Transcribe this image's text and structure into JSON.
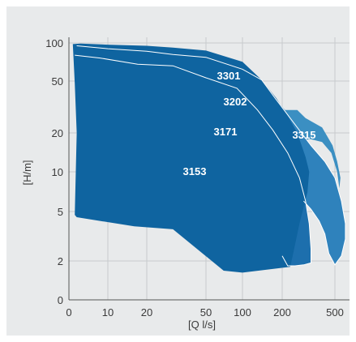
{
  "chart_data": {
    "type": "area",
    "xlabel": "[Q l/s]",
    "ylabel": "[H/m]",
    "x_scale": "log",
    "y_scale": "log",
    "x_ticks": [
      0,
      10,
      20,
      50,
      100,
      200,
      500
    ],
    "y_ticks": [
      0,
      2,
      5,
      10,
      20,
      50,
      100
    ],
    "grid": true,
    "colors": {
      "background": "#e8eaeb",
      "grid": "#c7cacc",
      "axis": "#555555",
      "s3301": "#3f86b6",
      "s3315": "#3b8fc2",
      "s3202": "#2f82bc",
      "s3171": "#1d6fad",
      "s3153": "#0f64a0",
      "boundary": "#ffffff"
    },
    "series": [
      {
        "name": "3301",
        "color_key": "s3301",
        "outline": [
          [
            30,
            66
          ],
          [
            60,
            62
          ],
          [
            100,
            56
          ],
          [
            140,
            50
          ],
          [
            180,
            36
          ],
          [
            210,
            30
          ],
          [
            240,
            22
          ],
          [
            260,
            18
          ],
          [
            240,
            14
          ],
          [
            200,
            13
          ]
        ]
      },
      {
        "name": "3315",
        "color_key": "s3315",
        "outline": [
          [
            160,
            32
          ],
          [
            200,
            30
          ],
          [
            260,
            30
          ],
          [
            300,
            26
          ],
          [
            400,
            22
          ],
          [
            480,
            16
          ],
          [
            520,
            12
          ],
          [
            550,
            9
          ],
          [
            540,
            7.5
          ],
          [
            520,
            10
          ],
          [
            470,
            14
          ],
          [
            400,
            17
          ],
          [
            320,
            18
          ],
          [
            250,
            16
          ],
          [
            200,
            15
          ]
        ]
      },
      {
        "name": "3202",
        "color_key": "s3202",
        "outline": [
          [
            2,
            95
          ],
          [
            10,
            90
          ],
          [
            20,
            86
          ],
          [
            30,
            81
          ],
          [
            50,
            77
          ],
          [
            100,
            62
          ],
          [
            140,
            51
          ],
          [
            180,
            36
          ],
          [
            260,
            22
          ],
          [
            330,
            16
          ],
          [
            420,
            12
          ],
          [
            500,
            9
          ],
          [
            560,
            6
          ],
          [
            600,
            4
          ],
          [
            600,
            3
          ],
          [
            560,
            2.2
          ],
          [
            500,
            1.8
          ],
          [
            450,
            2.3
          ],
          [
            420,
            3.3
          ],
          [
            380,
            4.2
          ],
          [
            330,
            5.2
          ],
          [
            290,
            6
          ]
        ]
      },
      {
        "name": "3171",
        "color_key": "s3171",
        "outline": [
          [
            1.5,
            80
          ],
          [
            8,
            76
          ],
          [
            17,
            68
          ],
          [
            30,
            66
          ],
          [
            50,
            53
          ],
          [
            90,
            44
          ],
          [
            130,
            30
          ],
          [
            170,
            21
          ],
          [
            220,
            14
          ],
          [
            270,
            9
          ],
          [
            300,
            6
          ],
          [
            320,
            4
          ],
          [
            330,
            2.5
          ],
          [
            330,
            1.9
          ],
          [
            290,
            1.8
          ],
          [
            250,
            1.75
          ],
          [
            220,
            1.75
          ],
          [
            200,
            2.2
          ]
        ]
      },
      {
        "name": "3153",
        "color_key": "s3153",
        "outline": [
          [
            1,
            98
          ],
          [
            3,
            99
          ],
          [
            10,
            97
          ],
          [
            20,
            95
          ],
          [
            30,
            92
          ],
          [
            50,
            87
          ],
          [
            100,
            71
          ],
          [
            140,
            51
          ],
          [
            180,
            37
          ],
          [
            220,
            27
          ],
          [
            260,
            20
          ],
          [
            300,
            13
          ],
          [
            320,
            10
          ],
          [
            310,
            7
          ],
          [
            270,
            4
          ],
          [
            240,
            2.2
          ],
          [
            230,
            1.7
          ],
          [
            100,
            1.4
          ],
          [
            70,
            1.5
          ],
          [
            30,
            3.6
          ],
          [
            16,
            3.8
          ],
          [
            2,
            4.5
          ],
          [
            1.5,
            4.7
          ],
          [
            2,
            20
          ],
          [
            1.5,
            48
          ]
        ]
      }
    ]
  }
}
